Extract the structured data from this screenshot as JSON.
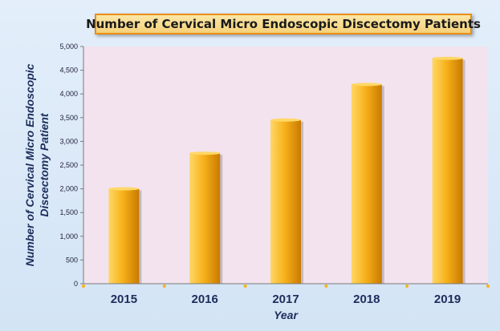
{
  "chart_data": {
    "type": "bar",
    "title": "Number of Cervical Micro Endoscopic Discectomy Patients",
    "xlabel": "Year",
    "ylabel_lines": [
      "Number of Cervical Micro Endoscopic",
      "Discectomy Patient"
    ],
    "categories": [
      "2015",
      "2016",
      "2017",
      "2018",
      "2019"
    ],
    "values": [
      2000,
      2750,
      3450,
      4200,
      4750
    ],
    "ylim": [
      0,
      5000
    ],
    "yticks": [
      0,
      500,
      1000,
      1500,
      2000,
      2500,
      3000,
      3500,
      4000,
      4500,
      5000
    ],
    "ytick_labels": [
      "0",
      "500",
      "1,000",
      "1,500",
      "2,000",
      "2,500",
      "3,000",
      "3,500",
      "4,000",
      "4,500",
      "5,000"
    ],
    "grid": false,
    "colors": {
      "bar_light": "#ffd766",
      "bar_mid": "#f8b21c",
      "bar_dark": "#c97a00",
      "plot_bg": "#f2e3ee",
      "axis": "#7a7a7a",
      "text": "#1c2d5c",
      "title_bg": "#f8d888",
      "title_border": "#e88f16"
    }
  }
}
